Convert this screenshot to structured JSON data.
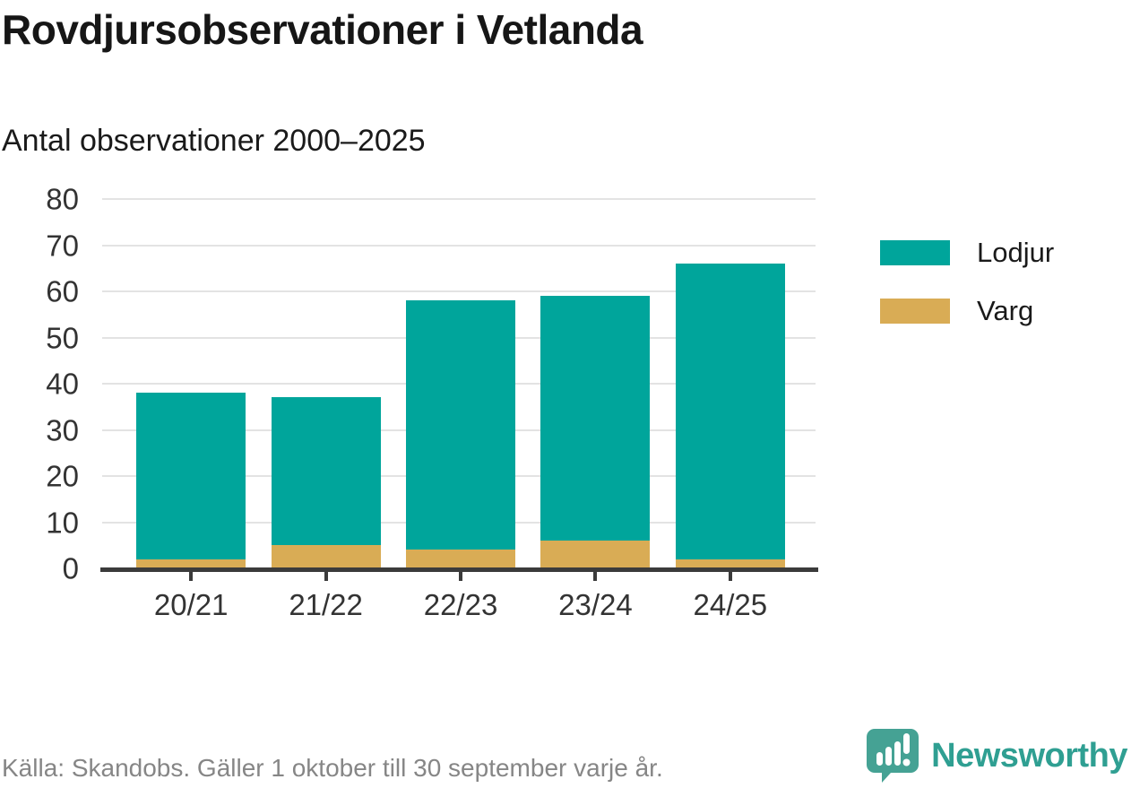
{
  "title": "Rovdjursobservationer i Vetlanda",
  "subtitle": "Antal observationer 2000–2025",
  "colors": {
    "lodjur": "#00a59b",
    "varg": "#d9ac55",
    "grid": "#e3e3e3",
    "axis": "#3b3b3b",
    "brand_teal": "#45a294"
  },
  "chart_data": {
    "type": "bar",
    "stacked": true,
    "title": "Rovdjursobservationer i Vetlanda",
    "subtitle": "Antal observationer 2000–2025",
    "categories": [
      "20/21",
      "21/22",
      "22/23",
      "23/24",
      "24/25"
    ],
    "series": [
      {
        "name": "Lodjur",
        "color": "#00a59b",
        "values": [
          36,
          32,
          54,
          53,
          64
        ]
      },
      {
        "name": "Varg",
        "color": "#d9ac55",
        "values": [
          2,
          5,
          4,
          6,
          2
        ]
      }
    ],
    "stack_bottom_to_top": [
      "Varg",
      "Lodjur"
    ],
    "totals": [
      38,
      37,
      58,
      59,
      66
    ],
    "xlabel": "",
    "ylabel": "",
    "ylim": [
      0,
      80
    ],
    "yticks": [
      0,
      10,
      20,
      30,
      40,
      50,
      60,
      70,
      80
    ],
    "grid": "horizontal",
    "legend_position": "right"
  },
  "legend": [
    {
      "label": "Lodjur",
      "color": "#00a59b"
    },
    {
      "label": "Varg",
      "color": "#d9ac55"
    }
  ],
  "footer": {
    "source": "Källa: Skandobs. Gäller 1 oktober till 30 september varje år.",
    "brand": "Newsworthy"
  }
}
